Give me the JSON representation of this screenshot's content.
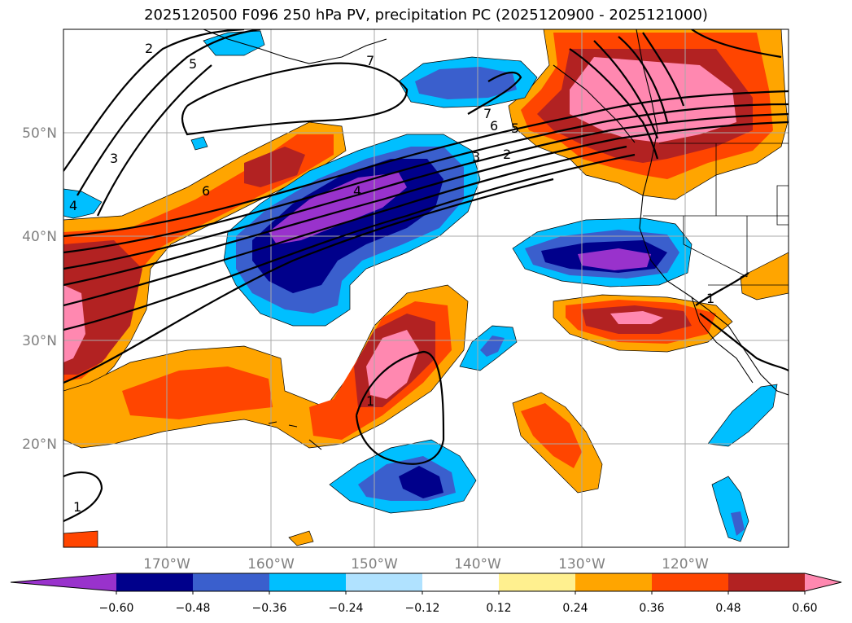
{
  "title": "2025120500 F096 250 hPa PV, precipitation PC (2025120900 - 2025121000)",
  "map": {
    "lon_labels": [
      "170°W",
      "160°W",
      "150°W",
      "140°W",
      "130°W",
      "120°W"
    ],
    "lat_labels": [
      "50°N",
      "40°N",
      "30°N",
      "20°N"
    ],
    "contour_labels": [
      "7",
      "7",
      "6",
      "5",
      "4",
      "3",
      "2",
      "2",
      "3",
      "6",
      "5",
      "4",
      "1",
      "1",
      "1"
    ]
  },
  "colorbar": {
    "ticks": [
      "−0.60",
      "−0.48",
      "−0.36",
      "−0.24",
      "−0.12",
      "0.12",
      "0.24",
      "0.36",
      "0.48",
      "0.60"
    ],
    "colors": [
      "#9932cc",
      "#00008b",
      "#3a5fcd",
      "#00bfff",
      "#b0e2ff",
      "#ffffff",
      "#fff08f",
      "#ffa500",
      "#ff4500",
      "#b22222",
      "#ff88b0"
    ]
  }
}
